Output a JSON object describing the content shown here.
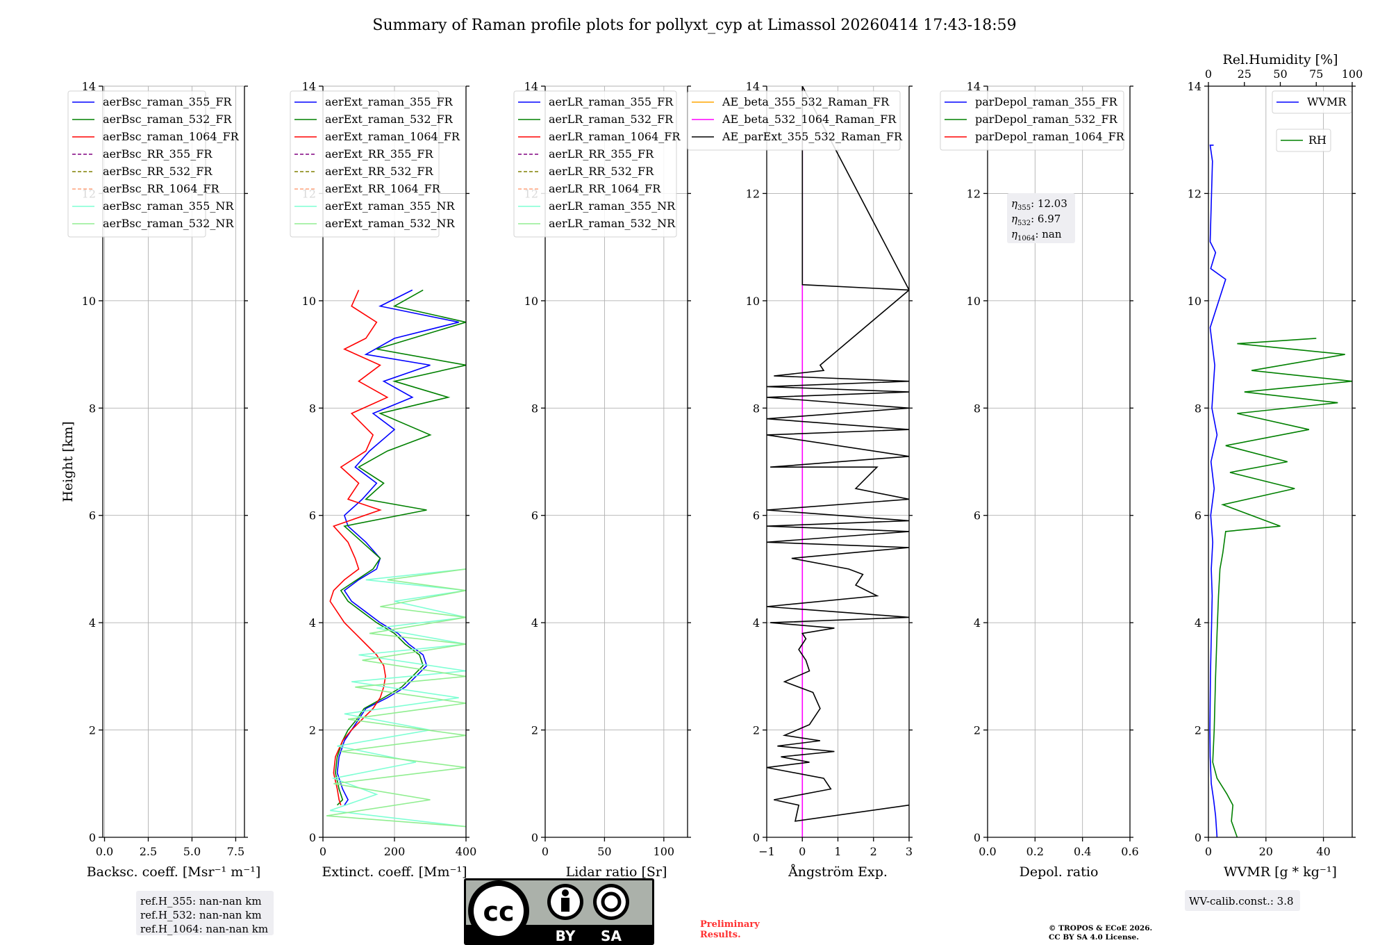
{
  "title": "Summary of Raman profile plots for pollyxt_cyp at Limassol 20260414 17:43-18:59",
  "colors": {
    "blue": "#0000ff",
    "green": "#008000",
    "red": "#ff0000",
    "purple": "#800080",
    "olive": "#808000",
    "salmon": "#ffa07a",
    "cyan": "#7fffd4",
    "lightgreen": "#90ee90",
    "orange": "#ffa500",
    "magenta": "#ff00ff",
    "black": "#000000"
  },
  "chart_data": [
    {
      "type": "line",
      "xlabel": "Backsc. coeff. [Msr⁻¹ m⁻¹]",
      "ylabel": "Height [km]",
      "xlim": [
        -0.1,
        8
      ],
      "ylim": [
        0,
        14
      ],
      "xticks": [
        "0.0",
        "2.5",
        "5.0",
        "7.5"
      ],
      "xtick_values": [
        0,
        2.5,
        5,
        7.5
      ],
      "yticks": [
        "0",
        "2",
        "4",
        "6",
        "8",
        "10",
        "12",
        "14"
      ],
      "legend": [
        {
          "label": "aerBsc_raman_355_FR",
          "color": "blue",
          "style": "solid"
        },
        {
          "label": "aerBsc_raman_532_FR",
          "color": "green",
          "style": "solid"
        },
        {
          "label": "aerBsc_raman_1064_FR",
          "color": "red",
          "style": "solid"
        },
        {
          "label": "aerBsc_RR_355_FR",
          "color": "purple",
          "style": "dashed"
        },
        {
          "label": "aerBsc_RR_532_FR",
          "color": "olive",
          "style": "dashed"
        },
        {
          "label": "aerBsc_RR_1064_FR",
          "color": "salmon",
          "style": "dashed"
        },
        {
          "label": "aerBsc_raman_355_NR",
          "color": "cyan",
          "style": "solid"
        },
        {
          "label": "aerBsc_raman_532_NR",
          "color": "lightgreen",
          "style": "solid"
        }
      ],
      "series": []
    },
    {
      "type": "line",
      "xlabel": "Extinct. coeff. [Mm⁻¹]",
      "xlim": [
        0,
        400
      ],
      "ylim": [
        0,
        14
      ],
      "xticks": [
        "0",
        "200",
        "400"
      ],
      "xtick_values": [
        0,
        200,
        400
      ],
      "yticks": [
        "0",
        "2",
        "4",
        "6",
        "8",
        "10",
        "12",
        "14"
      ],
      "legend": [
        {
          "label": "aerExt_raman_355_FR",
          "color": "blue",
          "style": "solid"
        },
        {
          "label": "aerExt_raman_532_FR",
          "color": "green",
          "style": "solid"
        },
        {
          "label": "aerExt_raman_1064_FR",
          "color": "red",
          "style": "solid"
        },
        {
          "label": "aerExt_RR_355_FR",
          "color": "purple",
          "style": "dashed"
        },
        {
          "label": "aerExt_RR_532_FR",
          "color": "olive",
          "style": "dashed"
        },
        {
          "label": "aerExt_RR_1064_FR",
          "color": "salmon",
          "style": "dashed"
        },
        {
          "label": "aerExt_raman_355_NR",
          "color": "cyan",
          "style": "solid"
        },
        {
          "label": "aerExt_raman_532_NR",
          "color": "lightgreen",
          "style": "solid"
        }
      ],
      "series": [
        {
          "name": "aerExt_raman_355_FR",
          "color": "blue",
          "x": [
            60,
            70,
            55,
            40,
            45,
            60,
            80,
            100,
            120,
            180,
            230,
            260,
            290,
            280,
            240,
            210,
            160,
            120,
            80,
            60,
            100,
            150,
            160,
            120,
            70,
            60,
            110,
            150,
            90,
            130,
            200,
            140,
            250,
            170,
            300,
            120,
            200,
            380,
            160,
            250
          ],
          "y": [
            0.6,
            0.7,
            0.9,
            1.2,
            1.5,
            1.8,
            2.0,
            2.2,
            2.4,
            2.6,
            2.8,
            3.0,
            3.2,
            3.4,
            3.6,
            3.8,
            4.0,
            4.2,
            4.4,
            4.6,
            4.8,
            5.0,
            5.2,
            5.5,
            5.8,
            6.0,
            6.3,
            6.6,
            6.9,
            7.2,
            7.6,
            7.9,
            8.2,
            8.5,
            8.8,
            9.0,
            9.3,
            9.6,
            9.9,
            10.2
          ]
        },
        {
          "name": "aerExt_raman_532_FR",
          "color": "green",
          "x": [
            40,
            55,
            45,
            35,
            40,
            55,
            70,
            95,
            115,
            170,
            220,
            250,
            280,
            270,
            230,
            200,
            150,
            110,
            70,
            50,
            95,
            140,
            160,
            110,
            60,
            290,
            120,
            170,
            100,
            180,
            300,
            160,
            350,
            200,
            400,
            150,
            250,
            400,
            200,
            280
          ],
          "y": [
            0.6,
            0.7,
            0.9,
            1.2,
            1.5,
            1.8,
            2.0,
            2.2,
            2.4,
            2.6,
            2.8,
            3.0,
            3.2,
            3.4,
            3.6,
            3.8,
            4.0,
            4.2,
            4.4,
            4.6,
            4.8,
            5.0,
            5.2,
            5.5,
            5.8,
            6.1,
            6.3,
            6.6,
            6.9,
            7.2,
            7.5,
            7.9,
            8.2,
            8.5,
            8.8,
            9.1,
            9.3,
            9.6,
            9.9,
            10.2
          ]
        },
        {
          "name": "aerExt_raman_1064_FR",
          "color": "red",
          "x": [
            50,
            45,
            40,
            30,
            35,
            55,
            80,
            110,
            140,
            160,
            170,
            175,
            170,
            150,
            120,
            90,
            60,
            40,
            20,
            30,
            60,
            100,
            90,
            70,
            30,
            160,
            70,
            100,
            50,
            120,
            140,
            80,
            180,
            100,
            160,
            60,
            120,
            150,
            80,
            100
          ],
          "y": [
            0.6,
            0.7,
            0.9,
            1.2,
            1.5,
            1.8,
            2.0,
            2.2,
            2.4,
            2.6,
            2.8,
            3.0,
            3.2,
            3.4,
            3.6,
            3.8,
            4.0,
            4.2,
            4.4,
            4.6,
            4.8,
            5.0,
            5.2,
            5.5,
            5.8,
            6.1,
            6.3,
            6.6,
            6.9,
            7.2,
            7.5,
            7.9,
            8.2,
            8.5,
            8.8,
            9.1,
            9.3,
            9.6,
            9.9,
            10.2
          ]
        },
        {
          "name": "aerExt_raman_355_NR",
          "color": "cyan",
          "x": [
            400,
            20,
            150,
            30,
            260,
            40,
            300,
            60,
            380,
            80,
            400,
            100,
            400,
            150,
            400,
            200,
            400,
            120,
            400
          ],
          "y": [
            0.2,
            0.5,
            0.8,
            1.1,
            1.4,
            1.7,
            2.0,
            2.3,
            2.6,
            2.9,
            3.1,
            3.4,
            3.6,
            3.9,
            4.1,
            4.4,
            4.6,
            4.8,
            5.0
          ]
        },
        {
          "name": "aerExt_raman_532_NR",
          "color": "lightgreen",
          "x": [
            400,
            10,
            300,
            30,
            400,
            50,
            400,
            70,
            400,
            90,
            400,
            110,
            400,
            130,
            400,
            160,
            400,
            180,
            400
          ],
          "y": [
            0.2,
            0.4,
            0.7,
            1.0,
            1.3,
            1.6,
            1.9,
            2.2,
            2.5,
            2.8,
            3.0,
            3.3,
            3.6,
            3.8,
            4.1,
            4.3,
            4.6,
            4.8,
            5.0
          ]
        }
      ]
    },
    {
      "type": "line",
      "xlabel": "Lidar ratio [Sr]",
      "xlim": [
        0,
        120
      ],
      "ylim": [
        0,
        14
      ],
      "xticks": [
        "0",
        "50",
        "100"
      ],
      "xtick_values": [
        0,
        50,
        100
      ],
      "yticks": [
        "0",
        "2",
        "4",
        "6",
        "8",
        "10",
        "12",
        "14"
      ],
      "legend": [
        {
          "label": "aerLR_raman_355_FR",
          "color": "blue",
          "style": "solid"
        },
        {
          "label": "aerLR_raman_532_FR",
          "color": "green",
          "style": "solid"
        },
        {
          "label": "aerLR_raman_1064_FR",
          "color": "red",
          "style": "solid"
        },
        {
          "label": "aerLR_RR_355_FR",
          "color": "purple",
          "style": "dashed"
        },
        {
          "label": "aerLR_RR_532_FR",
          "color": "olive",
          "style": "dashed"
        },
        {
          "label": "aerLR_RR_1064_FR",
          "color": "salmon",
          "style": "dashed"
        },
        {
          "label": "aerLR_raman_355_NR",
          "color": "cyan",
          "style": "solid"
        },
        {
          "label": "aerLR_raman_532_NR",
          "color": "lightgreen",
          "style": "solid"
        }
      ],
      "series": []
    },
    {
      "type": "line",
      "xlabel": "Ångström Exp.",
      "xlim": [
        -1,
        3
      ],
      "ylim": [
        0,
        14
      ],
      "xticks": [
        "−1",
        "0",
        "1",
        "2",
        "3"
      ],
      "xtick_values": [
        -1,
        0,
        1,
        2,
        3
      ],
      "yticks": [
        "0",
        "2",
        "4",
        "6",
        "8",
        "10",
        "12",
        "14"
      ],
      "legend": [
        {
          "label": "AE_beta_355_532_Raman_FR",
          "color": "orange",
          "style": "solid"
        },
        {
          "label": "AE_beta_532_1064_Raman_FR",
          "color": "magenta",
          "style": "solid"
        },
        {
          "label": "AE_parExt_355_532_Raman_FR",
          "color": "black",
          "style": "solid"
        }
      ],
      "series": [
        {
          "name": "AE_beta_532_1064_Raman_FR",
          "color": "magenta",
          "x": [
            0,
            0
          ],
          "y": [
            0,
            14
          ]
        },
        {
          "name": "AE_parExt_355_532_Raman_FR",
          "color": "black",
          "x": [
            3,
            -0.2,
            -0.1,
            -0.8,
            0.8,
            0.6,
            -1,
            0.2,
            -0.6,
            0.9,
            -0.7,
            0.5,
            -0.5,
            0.2,
            0.5,
            0.3,
            -0.5,
            0.2,
            0.1,
            -0.1,
            0.0,
            0.1,
            0.0,
            0.9,
            -0.9,
            3,
            -1,
            2.1,
            1.5,
            1.7,
            1.3,
            -0.3,
            3,
            -1,
            3,
            -1,
            3,
            -1,
            3,
            1.5,
            2.1,
            -0.9,
            3,
            -1,
            3,
            -1,
            3,
            -1,
            3,
            -1,
            3,
            -0.8,
            0.6,
            0.5,
            3,
            0.0,
            0.0,
            3
          ],
          "y": [
            0.6,
            0.3,
            0.6,
            0.7,
            0.9,
            1.1,
            1.3,
            1.4,
            1.5,
            1.6,
            1.7,
            1.8,
            1.9,
            2.1,
            2.4,
            2.7,
            2.9,
            3.1,
            3.3,
            3.5,
            3.6,
            3.7,
            3.8,
            3.9,
            4.0,
            4.1,
            4.3,
            4.5,
            4.7,
            4.9,
            5.0,
            5.2,
            5.4,
            5.5,
            5.7,
            5.8,
            5.9,
            6.1,
            6.3,
            6.5,
            6.9,
            6.9,
            7.1,
            7.5,
            7.6,
            7.8,
            8.0,
            8.2,
            8.3,
            8.4,
            8.5,
            8.6,
            8.7,
            8.8,
            10.2,
            10.3,
            14,
            10.2
          ]
        }
      ]
    },
    {
      "type": "line",
      "xlabel": "Depol. ratio",
      "xlim": [
        0,
        0.6
      ],
      "ylim": [
        0,
        14
      ],
      "xticks": [
        "0.0",
        "0.2",
        "0.4",
        "0.6"
      ],
      "xtick_values": [
        0,
        0.2,
        0.4,
        0.6
      ],
      "yticks": [
        "0",
        "2",
        "4",
        "6",
        "8",
        "10",
        "12",
        "14"
      ],
      "legend": [
        {
          "label": "parDepol_raman_355_FR",
          "color": "blue",
          "style": "solid"
        },
        {
          "label": "parDepol_raman_532_FR",
          "color": "green",
          "style": "solid"
        },
        {
          "label": "parDepol_raman_1064_FR",
          "color": "red",
          "style": "solid"
        }
      ],
      "series": []
    },
    {
      "type": "line",
      "xlabel": "WVMR [g * kg⁻¹]",
      "top_xlabel": "Rel.Humidity [%]",
      "xlim": [
        0,
        50
      ],
      "top_xlim": [
        0,
        100
      ],
      "ylim": [
        0,
        14
      ],
      "xticks": [
        "0",
        "20",
        "40"
      ],
      "xtick_values": [
        0,
        20,
        40
      ],
      "top_xticks": [
        "0",
        "25",
        "50",
        "75",
        "100"
      ],
      "top_xtick_values": [
        0,
        25,
        50,
        75,
        100
      ],
      "yticks": [
        "0",
        "2",
        "4",
        "6",
        "8",
        "10",
        "12",
        "14"
      ],
      "legend": [
        {
          "label": "WVMR",
          "color": "blue",
          "style": "solid"
        },
        {
          "label": "RH",
          "color": "green",
          "style": "solid"
        }
      ],
      "series": [
        {
          "name": "WVMR",
          "color": "blue",
          "x": [
            3,
            2.5,
            1.8,
            1.0,
            0.6,
            0.5,
            0.6,
            0.7,
            0.9,
            1.1,
            1.3,
            1.0,
            1.5,
            0.8,
            2.0,
            0.9,
            3.0,
            1.2,
            2.2,
            0.6,
            6.0,
            0.8,
            2.5,
            0.6,
            1.4,
            0.6,
            1.8
          ],
          "y": [
            0.0,
            0.4,
            0.7,
            1.0,
            1.5,
            2.0,
            2.5,
            3.0,
            3.5,
            4.0,
            4.5,
            5.0,
            5.5,
            6.0,
            6.5,
            7.0,
            7.5,
            8.0,
            8.8,
            9.5,
            10.4,
            10.6,
            10.9,
            11.1,
            12.6,
            12.9,
            12.9
          ]
        },
        {
          "name": "RH",
          "color": "green",
          "x": [
            20,
            16,
            17,
            13,
            6,
            3,
            4,
            5,
            6,
            7,
            8,
            10,
            12,
            50,
            10,
            60,
            15,
            55,
            12,
            70,
            20,
            90,
            25,
            100,
            30,
            95,
            20,
            75
          ],
          "y": [
            0.0,
            0.3,
            0.6,
            0.8,
            1.1,
            1.4,
            2.0,
            3.0,
            3.8,
            4.5,
            5.0,
            5.3,
            5.7,
            5.8,
            6.2,
            6.5,
            6.8,
            7.0,
            7.3,
            7.6,
            7.9,
            8.1,
            8.3,
            8.5,
            8.7,
            9.0,
            9.2,
            9.3
          ]
        }
      ]
    }
  ],
  "annotations": {
    "eta_lines": [
      "η355: 12.03",
      "η532: 6.97",
      "η1064: nan"
    ],
    "eta_labels": [
      {
        "sub": "355",
        "value": ": 12.03"
      },
      {
        "sub": "532",
        "value": ": 6.97"
      },
      {
        "sub": "1064",
        "value": ": nan"
      }
    ],
    "ref_lines": [
      "ref.H_355: nan-nan km",
      "ref.H_532: nan-nan km",
      "ref.H_1064: nan-nan km"
    ],
    "wv_calib": "WV-calib.const.: 3.8",
    "preliminary": [
      "Preliminary",
      "Results."
    ],
    "copyright": [
      "© TROPOS & ECoE 2026.",
      "CC BY SA 4.0 License."
    ],
    "license_badge": {
      "cc": "cc",
      "by": "BY",
      "sa": "SA"
    }
  }
}
